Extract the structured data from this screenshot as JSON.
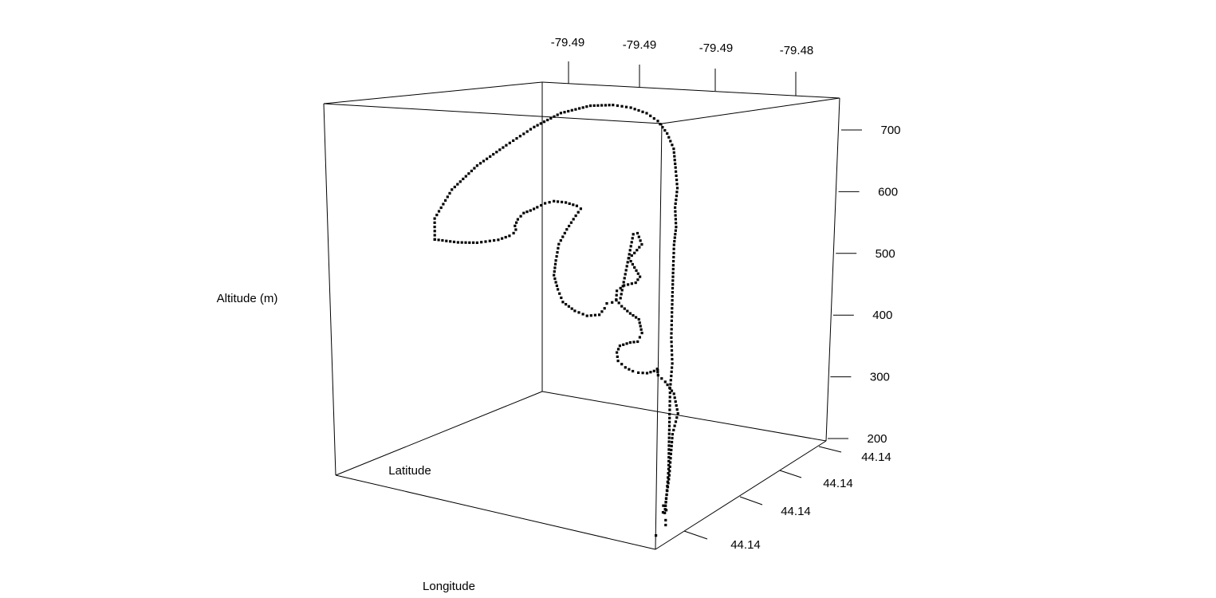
{
  "chart_data": {
    "type": "scatter",
    "projection": "3d",
    "title": "",
    "xlabel": "Longitude",
    "ylabel": "Latitude",
    "zlabel": "Altitude (m)",
    "x_tick_labels": [
      "-79.49",
      "-79.49",
      "-79.49",
      "-79.48"
    ],
    "y_tick_labels": [
      "44.14",
      "44.14",
      "44.14",
      "44.14"
    ],
    "z_ticks": [
      200,
      300,
      400,
      500,
      600,
      700
    ],
    "zlim": [
      200,
      720
    ],
    "grid": false,
    "legend": "none",
    "marker_color": "#000000",
    "track": [
      [
        0.12,
        0.3,
        520
      ],
      [
        0.1,
        0.33,
        548
      ],
      [
        0.11,
        0.4,
        588
      ],
      [
        0.14,
        0.48,
        622
      ],
      [
        0.19,
        0.55,
        652
      ],
      [
        0.25,
        0.6,
        680
      ],
      [
        0.32,
        0.63,
        702
      ],
      [
        0.4,
        0.66,
        714
      ],
      [
        0.47,
        0.67,
        716
      ],
      [
        0.53,
        0.67,
        713
      ],
      [
        0.59,
        0.66,
        706
      ],
      [
        0.64,
        0.64,
        696
      ],
      [
        0.69,
        0.61,
        680
      ],
      [
        0.73,
        0.58,
        660
      ],
      [
        0.76,
        0.54,
        636
      ],
      [
        0.79,
        0.5,
        610
      ],
      [
        0.8,
        0.47,
        585
      ],
      [
        0.815,
        0.45,
        560
      ],
      [
        0.82,
        0.43,
        537
      ],
      [
        0.835,
        0.4,
        512
      ],
      [
        0.85,
        0.37,
        484
      ],
      [
        0.865,
        0.34,
        455
      ],
      [
        0.88,
        0.31,
        425
      ],
      [
        0.9,
        0.28,
        395
      ],
      [
        0.91,
        0.25,
        366
      ],
      [
        0.925,
        0.22,
        337
      ],
      [
        0.94,
        0.19,
        306
      ],
      [
        0.955,
        0.16,
        276
      ],
      [
        0.965,
        0.13,
        248
      ],
      [
        0.97,
        0.11,
        228
      ],
      [
        0.98,
        0.1,
        248
      ],
      [
        0.99,
        0.1,
        278
      ],
      [
        0.995,
        0.1,
        305
      ],
      [
        1.0,
        0.1,
        330
      ],
      [
        0.99,
        0.15,
        350
      ],
      [
        0.95,
        0.2,
        367
      ],
      [
        0.9,
        0.24,
        375
      ],
      [
        0.86,
        0.27,
        378
      ],
      [
        0.84,
        0.3,
        382
      ],
      [
        0.83,
        0.32,
        378
      ],
      [
        0.79,
        0.33,
        370
      ],
      [
        0.75,
        0.35,
        366
      ],
      [
        0.72,
        0.37,
        364
      ],
      [
        0.69,
        0.38,
        366
      ],
      [
        0.66,
        0.39,
        372
      ],
      [
        0.65,
        0.4,
        382
      ],
      [
        0.66,
        0.4,
        392
      ],
      [
        0.7,
        0.39,
        400
      ],
      [
        0.73,
        0.38,
        404
      ],
      [
        0.75,
        0.37,
        418
      ],
      [
        0.74,
        0.37,
        436
      ],
      [
        0.7,
        0.39,
        440
      ],
      [
        0.66,
        0.41,
        446
      ],
      [
        0.63,
        0.43,
        452
      ],
      [
        0.62,
        0.45,
        462
      ],
      [
        0.65,
        0.44,
        472
      ],
      [
        0.7,
        0.42,
        480
      ],
      [
        0.72,
        0.41,
        490
      ],
      [
        0.69,
        0.43,
        500
      ],
      [
        0.66,
        0.45,
        510
      ],
      [
        0.69,
        0.43,
        520
      ],
      [
        0.72,
        0.42,
        534
      ],
      [
        0.7,
        0.43,
        548
      ],
      [
        0.68,
        0.44,
        545
      ],
      [
        0.62,
        0.47,
        450
      ],
      [
        0.58,
        0.49,
        440
      ],
      [
        0.55,
        0.51,
        435
      ],
      [
        0.53,
        0.53,
        425
      ],
      [
        0.5,
        0.55,
        412
      ],
      [
        0.44,
        0.58,
        404
      ],
      [
        0.38,
        0.61,
        405
      ],
      [
        0.32,
        0.64,
        412
      ],
      [
        0.29,
        0.66,
        428
      ],
      [
        0.27,
        0.67,
        448
      ],
      [
        0.27,
        0.68,
        470
      ],
      [
        0.28,
        0.68,
        496
      ],
      [
        0.32,
        0.66,
        522
      ],
      [
        0.37,
        0.63,
        547
      ],
      [
        0.4,
        0.61,
        560
      ],
      [
        0.38,
        0.62,
        563
      ],
      [
        0.33,
        0.64,
        565
      ],
      [
        0.27,
        0.67,
        563
      ],
      [
        0.22,
        0.7,
        556
      ],
      [
        0.18,
        0.72,
        547
      ],
      [
        0.15,
        0.73,
        540
      ],
      [
        0.12,
        0.74,
        534
      ],
      [
        0.1,
        0.74,
        523
      ],
      [
        0.09,
        0.74,
        512
      ],
      [
        0.1,
        0.73,
        507
      ],
      [
        0.12,
        0.69,
        505
      ],
      [
        0.14,
        0.64,
        505
      ],
      [
        0.15,
        0.57,
        504
      ],
      [
        0.14,
        0.48,
        505
      ],
      [
        0.13,
        0.4,
        510
      ],
      [
        0.12,
        0.3,
        520
      ]
    ],
    "clusters": [
      [
        0.96,
        0.12,
        235
      ],
      [
        0.97,
        0.1,
        230
      ],
      [
        0.975,
        0.11,
        232
      ],
      [
        1.0,
        0.06,
        228
      ],
      [
        1.0,
        0.06,
        222
      ],
      [
        0.98,
        0.04,
        210
      ]
    ]
  }
}
